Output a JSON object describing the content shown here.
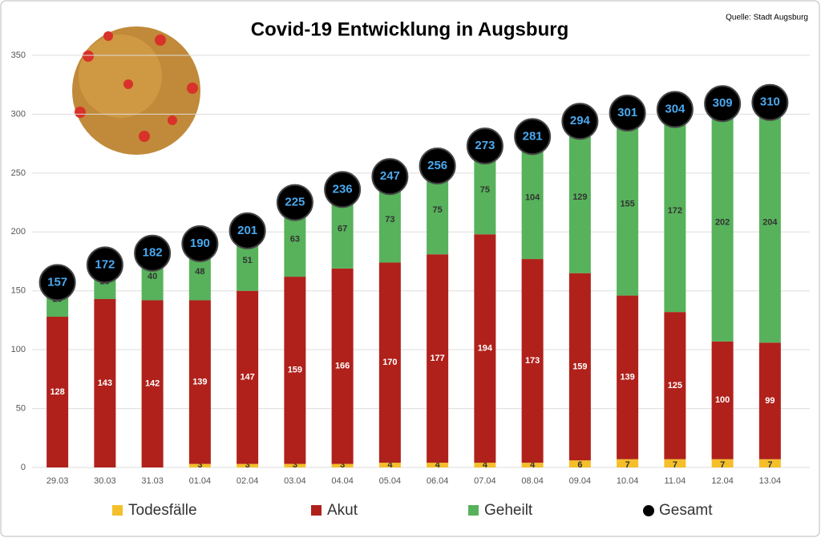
{
  "chart_data": {
    "type": "bar",
    "stacked": true,
    "title": "Covid-19 Entwicklung in Augsburg",
    "source": "Quelle: Stadt Augsburg",
    "categories": [
      "29.03",
      "30.03",
      "31.03",
      "01.04",
      "02.04",
      "03.04",
      "04.04",
      "05.04",
      "06.04",
      "07.04",
      "08.04",
      "09.04",
      "10.04",
      "11.04",
      "12.04",
      "13.04"
    ],
    "series": [
      {
        "name": "Todesfälle",
        "color": "#f5bf2a",
        "values": [
          0,
          0,
          0,
          3,
          3,
          3,
          3,
          4,
          4,
          4,
          4,
          6,
          7,
          7,
          7,
          7
        ]
      },
      {
        "name": "Akut",
        "color": "#b0211b",
        "values": [
          128,
          143,
          142,
          139,
          147,
          159,
          166,
          170,
          177,
          194,
          173,
          159,
          139,
          125,
          100,
          99
        ]
      },
      {
        "name": "Geheilt",
        "color": "#57b25b",
        "values": [
          29,
          29,
          40,
          48,
          51,
          63,
          67,
          73,
          75,
          75,
          104,
          129,
          155,
          172,
          202,
          204
        ]
      },
      {
        "name": "Gesamt",
        "color": "#000000",
        "type": "scatter",
        "values": [
          157,
          172,
          182,
          190,
          201,
          225,
          236,
          247,
          256,
          273,
          281,
          294,
          301,
          304,
          309,
          310
        ]
      }
    ],
    "ylim": [
      0,
      350
    ],
    "yticks": [
      0,
      50,
      100,
      150,
      200,
      250,
      300,
      350
    ],
    "grid": true,
    "legend": "bottom"
  }
}
